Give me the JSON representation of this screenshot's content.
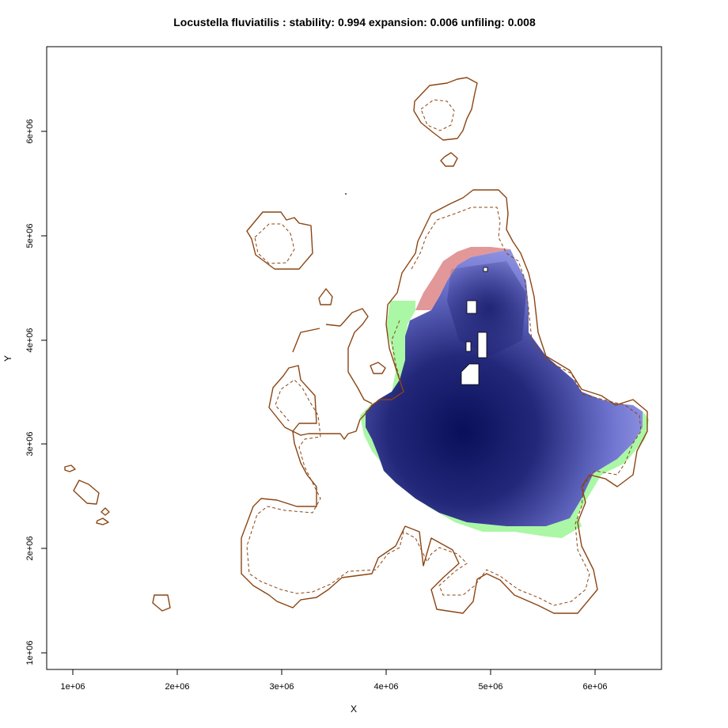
{
  "title": "Locustella fluviatilis : stability: 0.994 expansion: 0.006 unfiling: 0.008",
  "xlabel": "X",
  "ylabel": "Y",
  "x_ticks": [
    "1e+06",
    "2e+06",
    "3e+06",
    "4e+06",
    "5e+06",
    "6e+06"
  ],
  "y_ticks": [
    "1e+06",
    "2e+06",
    "3e+06",
    "4e+06",
    "5e+06",
    "6e+06"
  ],
  "colors": {
    "stability_dark": "#0a0f5a",
    "stability_light": "#a3a6ee",
    "expansion": "#aaf7a5",
    "unfilling": "#e29898",
    "coastline": "#8b4513"
  },
  "chart_data": {
    "type": "heatmap",
    "title": "Locustella fluviatilis : stability: 0.994 expansion: 0.006 unfiling: 0.008",
    "xlabel": "X",
    "ylabel": "Y",
    "xlim": [
      750000,
      6650000
    ],
    "ylim": [
      850000,
      6820000
    ],
    "metrics": {
      "stability": 0.994,
      "expansion": 0.006,
      "unfilling": 0.008
    },
    "categories": [
      "stability",
      "expansion",
      "unfilling"
    ]
  }
}
